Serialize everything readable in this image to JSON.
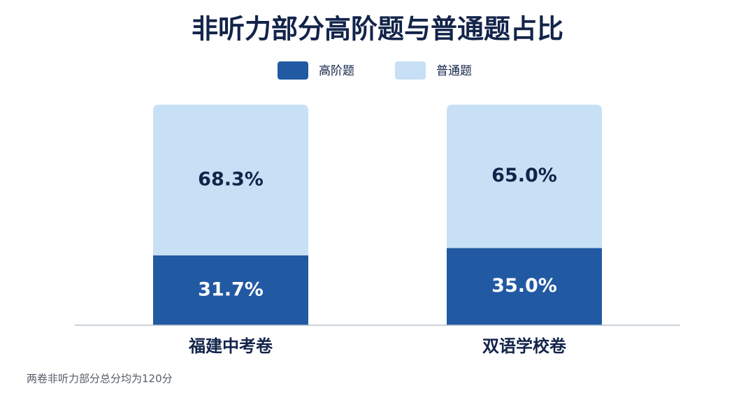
{
  "chart_data": {
    "type": "stacked-bar",
    "title": "非听力部分高阶题与普通题占比",
    "categories": [
      "福建中考卷",
      "双语学校卷"
    ],
    "series": [
      {
        "name": "高阶题",
        "color": "#2159a3",
        "values": [
          31.7,
          35.0
        ],
        "value_labels": [
          "31.7%",
          "35.0%"
        ]
      },
      {
        "name": "普通题",
        "color": "#c7e0f5",
        "values": [
          68.3,
          65.0
        ],
        "value_labels": [
          "68.3%",
          "65.0%"
        ]
      }
    ],
    "ylim": [
      0,
      100
    ],
    "footnote": "两卷非听力部分总分均为120分"
  }
}
